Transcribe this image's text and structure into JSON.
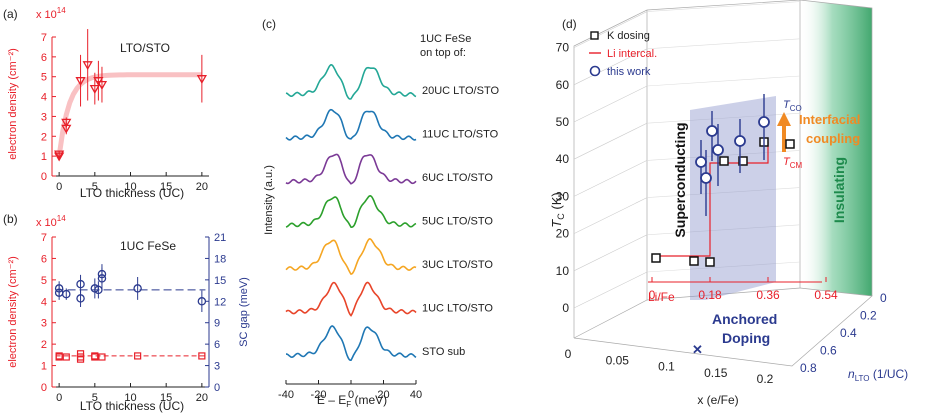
{
  "chart_data": [
    {
      "panel_label": "(a)",
      "type": "scatter",
      "annotation": "LTO/STO",
      "xlabel": "LTO thickness (UC)",
      "ylabel": "electron density (cm⁻²)",
      "y_multiplier": "x 10",
      "y_multiplier_exp": "14",
      "xlim": [
        -1,
        21
      ],
      "ylim": [
        0,
        7
      ],
      "xticks": [
        "0",
        "5",
        "10",
        "15",
        "20"
      ],
      "yticks": [
        "0",
        "1",
        "2",
        "3",
        "4",
        "5",
        "6",
        "7"
      ],
      "series": [
        {
          "color": "#e8202a",
          "marker": "triangle-down",
          "x": [
            0,
            0,
            1,
            1,
            3,
            4,
            5,
            5.5,
            6,
            20
          ],
          "y": [
            1.0,
            1.1,
            2.7,
            2.4,
            4.8,
            5.6,
            4.4,
            4.8,
            4.6,
            4.9
          ],
          "yerr": [
            0.15,
            0.15,
            0.25,
            0.3,
            1.3,
            1.8,
            0.8,
            1.0,
            0.9,
            1.2
          ]
        }
      ],
      "fit_curve": {
        "color": "#f7b2b4",
        "plateau": 5.1
      }
    },
    {
      "panel_label": "(b)",
      "type": "scatter",
      "annotation": "1UC FeSe",
      "xlabel": "LTO thickness (UC)",
      "ylabel": "electron density (cm⁻²)",
      "y2label": "SC gap (meV)",
      "y_multiplier": "x 10",
      "y_multiplier_exp": "14",
      "xlim": [
        -1,
        21
      ],
      "ylim": [
        0,
        7
      ],
      "y2lim": [
        0,
        21
      ],
      "xticks": [
        "0",
        "5",
        "10",
        "15",
        "20"
      ],
      "yticks": [
        "0",
        "1",
        "2",
        "3",
        "4",
        "5",
        "6",
        "7"
      ],
      "y2ticks": [
        "0",
        "3",
        "6",
        "9",
        "12",
        "15",
        "18",
        "21"
      ],
      "series": [
        {
          "color": "#e8202a",
          "marker": "square",
          "x": [
            0,
            0,
            1,
            3,
            3,
            3,
            5,
            5,
            6,
            11,
            20
          ],
          "y": [
            1.45,
            1.4,
            1.4,
            1.55,
            1.4,
            1.3,
            1.45,
            1.4,
            1.4,
            1.45,
            1.45
          ]
        },
        {
          "color": "#2b3a8f",
          "marker": "circle",
          "axis": "right",
          "x": [
            0,
            0,
            1,
            3,
            3,
            5,
            5.5,
            6,
            6,
            11,
            20
          ],
          "y": [
            13.8,
            13.2,
            13.0,
            14.4,
            12.4,
            13.8,
            13.6,
            15.2,
            15.8,
            13.8,
            12.0
          ],
          "yerr": [
            1.0,
            1.0,
            0.8,
            1.3,
            1.2,
            1.4,
            1.2,
            1.5,
            1.4,
            1.6,
            1.5
          ]
        }
      ],
      "fit_lines": {
        "red": 1.45,
        "blue": 13.6
      }
    },
    {
      "panel_label": "(c)",
      "type": "line",
      "xlabel": "E – E",
      "xlabel_sub": "F",
      "xlabel_unit": " (meV)",
      "ylabel": "Intensity (a.u.)",
      "xlim": [
        -40,
        40
      ],
      "xticks": [
        "-40",
        "-20",
        "0",
        "20",
        "40"
      ],
      "header_lines": [
        "1UC FeSe",
        "on top of:"
      ],
      "series": [
        {
          "name": "20UC LTO/STO",
          "color": "#23a796",
          "gap": 12,
          "depth": 0.5
        },
        {
          "name": "11UC LTO/STO",
          "color": "#1f77b4",
          "gap": 11,
          "depth": 0.45
        },
        {
          "name": "6UC LTO/STO",
          "color": "#7b3a96",
          "gap": 10,
          "depth": 0.6
        },
        {
          "name": "5UC LTO/STO",
          "color": "#2ca02c",
          "gap": 11,
          "depth": 0.45
        },
        {
          "name": "3UC LTO/STO",
          "color": "#f5a623",
          "gap": 12,
          "depth": 0.5
        },
        {
          "name": "1UC LTO/STO",
          "color": "#e8452a",
          "gap": 10,
          "depth": 0.5
        },
        {
          "name": "STO sub",
          "color": "#1f77b4",
          "gap": 11,
          "depth": 0.55
        }
      ]
    },
    {
      "panel_label": "(d)",
      "type": "scatter",
      "ylabel": "T",
      "ylabel_sub": "C",
      "ylabel_unit": " (K)",
      "xlabel": "x (e/Fe)",
      "zlabel": "n",
      "zlabel_sub": "LTO",
      "zlabel_unit": " (1/UC)",
      "xticks": [
        "0",
        "0.05",
        "0.1",
        "0.15",
        "0.2"
      ],
      "yticks": [
        "0",
        "10",
        "20",
        "30",
        "40",
        "50",
        "60",
        "70"
      ],
      "zticks": [
        "0",
        "0.2",
        "0.4",
        "0.6",
        "0.8"
      ],
      "li_axis_label": "Li/Fe",
      "li_ticks": [
        "0",
        "0.18",
        "0.36",
        "0.54"
      ],
      "legend": [
        "K dosing",
        "Li intercal.",
        "this work"
      ],
      "legend_position": "top-left",
      "annotations": {
        "superconducting": "Superconducting",
        "insulating": "Insulating",
        "interfacial_1": "Interfacial",
        "interfacial_2": "coupling",
        "anchored_1": "Anchored",
        "anchored_2": "Doping",
        "tco": "T",
        "tco_sub": "CO",
        "tcm": "T",
        "tcm_sub": "CM"
      },
      "series": [
        {
          "name": "K dosing",
          "marker": "square",
          "x": [
            0.0,
            0.05,
            0.075,
            0.155,
            0.17,
            0.19
          ],
          "y": [
            23,
            22,
            22,
            52,
            57,
            57
          ]
        },
        {
          "name": "Li intercal.",
          "marker": "line",
          "color": "#e8202a"
        },
        {
          "name": "this work",
          "marker": "circle",
          "color": "#2b3a8f",
          "y": [
            50,
            47,
            60,
            55,
            58,
            63
          ]
        }
      ]
    }
  ]
}
